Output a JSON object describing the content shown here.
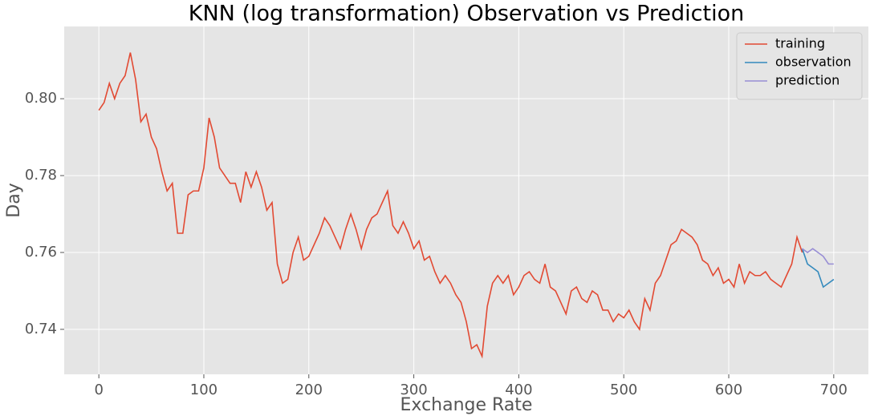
{
  "chart_data": {
    "type": "line",
    "title": "KNN (log transformation) Observation vs Prediction",
    "xlabel": "Exchange Rate",
    "ylabel": "Day",
    "xlim": [
      -33,
      733
    ],
    "ylim": [
      0.7283,
      0.8188
    ],
    "xticks": [
      0,
      100,
      200,
      300,
      400,
      500,
      600,
      700
    ],
    "yticks": [
      0.74,
      0.76,
      0.78,
      {
        "value": 0.8,
        "label": "0.80"
      }
    ],
    "grid": true,
    "legend": "upper right",
    "series": [
      {
        "name": "training",
        "color": "#E24A33",
        "x": [
          0,
          5,
          10,
          15,
          20,
          25,
          30,
          35,
          40,
          45,
          50,
          55,
          60,
          65,
          70,
          75,
          80,
          85,
          90,
          95,
          100,
          105,
          110,
          115,
          120,
          125,
          130,
          135,
          140,
          145,
          150,
          155,
          160,
          165,
          170,
          175,
          180,
          185,
          190,
          195,
          200,
          205,
          210,
          215,
          220,
          225,
          230,
          235,
          240,
          245,
          250,
          255,
          260,
          265,
          270,
          275,
          280,
          285,
          290,
          295,
          300,
          305,
          310,
          315,
          320,
          325,
          330,
          335,
          340,
          345,
          350,
          355,
          360,
          365,
          370,
          375,
          380,
          385,
          390,
          395,
          400,
          405,
          410,
          415,
          420,
          425,
          430,
          435,
          440,
          445,
          450,
          455,
          460,
          465,
          470,
          475,
          480,
          485,
          490,
          495,
          500,
          505,
          510,
          515,
          520,
          525,
          530,
          535,
          540,
          545,
          550,
          555,
          560,
          565,
          570,
          575,
          580,
          585,
          590,
          595,
          600,
          605,
          610,
          615,
          620,
          625,
          630,
          635,
          640,
          645,
          650,
          655,
          660,
          665,
          670
        ],
        "values": [
          0.797,
          0.799,
          0.804,
          0.8,
          0.804,
          0.806,
          0.812,
          0.805,
          0.794,
          0.796,
          0.79,
          0.787,
          0.781,
          0.776,
          0.778,
          0.765,
          0.765,
          0.775,
          0.776,
          0.776,
          0.782,
          0.795,
          0.79,
          0.782,
          0.78,
          0.778,
          0.778,
          0.773,
          0.781,
          0.777,
          0.781,
          0.777,
          0.771,
          0.773,
          0.757,
          0.752,
          0.753,
          0.76,
          0.764,
          0.758,
          0.759,
          0.762,
          0.765,
          0.769,
          0.767,
          0.764,
          0.761,
          0.766,
          0.77,
          0.766,
          0.761,
          0.766,
          0.769,
          0.77,
          0.773,
          0.776,
          0.767,
          0.765,
          0.768,
          0.765,
          0.761,
          0.763,
          0.758,
          0.759,
          0.755,
          0.752,
          0.754,
          0.752,
          0.749,
          0.747,
          0.742,
          0.735,
          0.736,
          0.733,
          0.746,
          0.752,
          0.754,
          0.752,
          0.754,
          0.749,
          0.751,
          0.754,
          0.755,
          0.753,
          0.752,
          0.757,
          0.751,
          0.75,
          0.747,
          0.744,
          0.75,
          0.751,
          0.748,
          0.747,
          0.75,
          0.749,
          0.745,
          0.745,
          0.742,
          0.744,
          0.743,
          0.745,
          0.742,
          0.74,
          0.748,
          0.745,
          0.752,
          0.754,
          0.758,
          0.762,
          0.763,
          0.766,
          0.765,
          0.764,
          0.762,
          0.758,
          0.757,
          0.754,
          0.756,
          0.752,
          0.753,
          0.751,
          0.757,
          0.752,
          0.755,
          0.754,
          0.754,
          0.755,
          0.753,
          0.752,
          0.751,
          0.754,
          0.757,
          0.764,
          0.76
        ]
      },
      {
        "name": "observation",
        "color": "#348ABD",
        "x": [
          670,
          675,
          680,
          685,
          690,
          695,
          700
        ],
        "values": [
          0.761,
          0.757,
          0.756,
          0.755,
          0.751,
          0.752,
          0.753
        ]
      },
      {
        "name": "prediction",
        "color": "#988ED5",
        "x": [
          670,
          675,
          680,
          685,
          690,
          695,
          700
        ],
        "values": [
          0.761,
          0.76,
          0.761,
          0.76,
          0.759,
          0.757,
          0.757
        ]
      }
    ]
  }
}
